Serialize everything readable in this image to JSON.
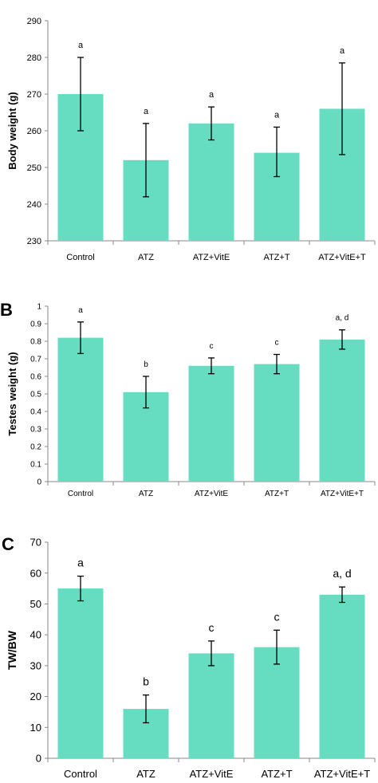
{
  "colors": {
    "bar": "#66DDC0",
    "axis": "#888888",
    "text": "#000000"
  },
  "chart_data": [
    {
      "type": "bar",
      "panel_label": "",
      "ylabel": "Body weight (g)",
      "ylim": [
        230,
        290
      ],
      "yticks": [
        "230",
        "240",
        "250",
        "260",
        "270",
        "280",
        "290"
      ],
      "categories": [
        "Control",
        "ATZ",
        "ATZ+VitE",
        "ATZ+T",
        "ATZ+VitE+T"
      ],
      "values": [
        270,
        252,
        262,
        254,
        266
      ],
      "error_low": [
        260,
        242,
        257.5,
        247.5,
        253.5
      ],
      "error_high": [
        280,
        262,
        266.5,
        261,
        278.5
      ],
      "labels": [
        "a",
        "a",
        "a",
        "a",
        "a"
      ]
    },
    {
      "type": "bar",
      "panel_label": "B",
      "ylabel": "Testes weight (g)",
      "ylim": [
        0,
        1
      ],
      "yticks": [
        "0",
        "0.1",
        "0.2",
        "0.3",
        "0.4",
        "0.5",
        "0.6",
        "0.7",
        "0.8",
        "0.9",
        "1"
      ],
      "categories": [
        "Control",
        "ATZ",
        "ATZ+VitE",
        "ATZ+T",
        "ATZ+VitE+T"
      ],
      "values": [
        0.82,
        0.51,
        0.66,
        0.67,
        0.81
      ],
      "error_low": [
        0.73,
        0.42,
        0.615,
        0.615,
        0.755
      ],
      "error_high": [
        0.91,
        0.6,
        0.705,
        0.725,
        0.865
      ],
      "labels": [
        "a",
        "b",
        "c",
        "c",
        "a, d"
      ]
    },
    {
      "type": "bar",
      "panel_label": "C",
      "ylabel": "TW/BW",
      "ylim": [
        0,
        70
      ],
      "yticks": [
        "0",
        "10",
        "20",
        "30",
        "40",
        "50",
        "60",
        "70"
      ],
      "categories": [
        "Control",
        "ATZ",
        "ATZ+VitE",
        "ATZ+T",
        "ATZ+VitE+T"
      ],
      "values": [
        55,
        16,
        34,
        36,
        53
      ],
      "error_low": [
        51,
        11.5,
        30,
        30.5,
        50.5
      ],
      "error_high": [
        59,
        20.5,
        38,
        41.5,
        55.5
      ],
      "labels": [
        "a",
        "b",
        "c",
        "c",
        "a, d"
      ]
    }
  ]
}
